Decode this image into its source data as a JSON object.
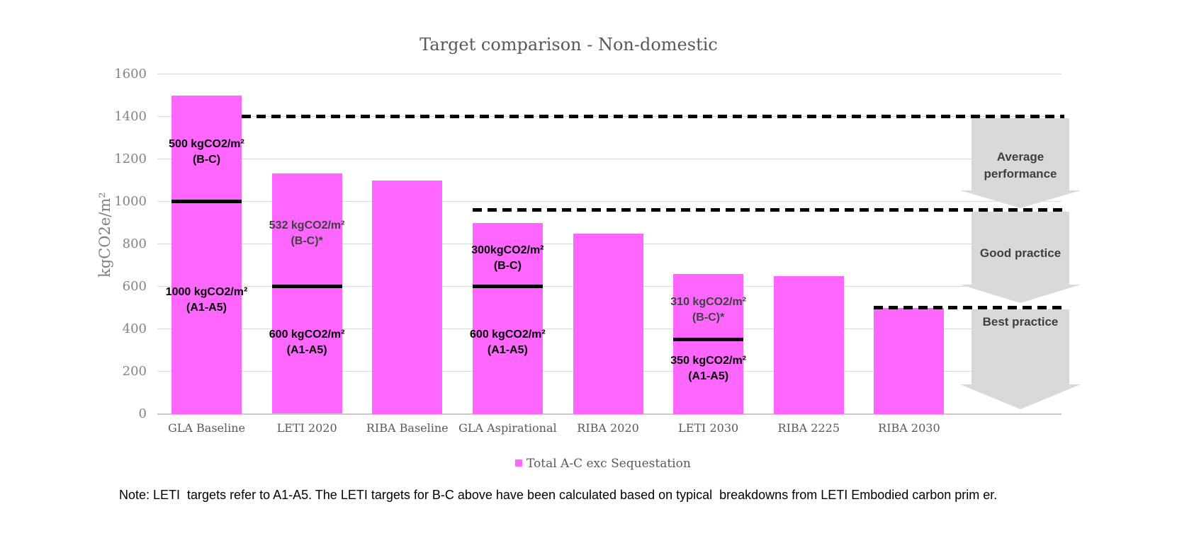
{
  "title": "Target comparison - Non-domestic",
  "y_axis_label": "kgCO2e/m²",
  "legend": {
    "label": "Total A-C exc Sequestation"
  },
  "note": "Note: LETI  targets refer to A1-A5. The LETI targets for B-C above have been calculated based on typical  breakdowns from LETI Embodied carbon prim er.",
  "colors": {
    "bar": "#FF66FF",
    "grid": "#D9D9D9",
    "arrow": "#D9D9D9",
    "marker_line": "#000000",
    "dashed_line": "#000000",
    "starred_label": "#404040",
    "plain_label": "#000000"
  },
  "chart_data": {
    "type": "bar",
    "title": "Target comparison - Non-domestic",
    "xlabel": "",
    "ylabel": "kgCO2e/m²",
    "ylim": [
      0,
      1600
    ],
    "ytick_step": 200,
    "grid": true,
    "legend_position": "bottom",
    "categories": [
      "GLA Baseline",
      "LETI 2020",
      "RIBA Baseline",
      "GLA Aspirational",
      "RIBA 2020",
      "LETI 2030",
      "RIBA 2225",
      "RIBA 2030"
    ],
    "series": [
      {
        "name": "Total A-C exc Sequestation",
        "values": [
          1500,
          1132,
          1100,
          900,
          850,
          660,
          650,
          500
        ]
      }
    ],
    "bar_annotations": [
      {
        "category": "GLA Baseline",
        "divider": 1000,
        "upper_lines": [
          "500 kgCO2/m²",
          "(B-C)"
        ],
        "upper_color": "#000000",
        "lower_lines": [
          "1000 kgCO2/m²",
          "(A1-A5)"
        ],
        "lower_color": "#000000"
      },
      {
        "category": "LETI 2020",
        "divider": 600,
        "upper_lines": [
          "532 kgCO2/m²",
          "(B-C)*"
        ],
        "upper_color": "#404040",
        "lower_lines": [
          "600 kgCO2/m²",
          "(A1-A5)"
        ],
        "lower_color": "#000000"
      },
      {
        "category": "GLA Aspirational",
        "divider": 600,
        "upper_lines": [
          "300kgCO2/m²",
          "(B-C)"
        ],
        "upper_color": "#000000",
        "lower_lines": [
          "600 kgCO2/m²",
          "(A1-A5)"
        ],
        "lower_color": "#000000"
      },
      {
        "category": "LETI 2030",
        "divider": 350,
        "upper_lines": [
          "310 kgCO2/m²",
          "(B-C)*"
        ],
        "upper_color": "#404040",
        "lower_lines": [
          "350 kgCO2/m²",
          "(A1-A5)"
        ],
        "lower_color": "#000000"
      }
    ],
    "threshold_zones": [
      {
        "label": "Average performance",
        "level": 1400,
        "line_start_category": "GLA Baseline",
        "line_start_edge": "right"
      },
      {
        "label": "Good practice",
        "level": 960,
        "line_start_category": "GLA Aspirational",
        "line_start_edge": "left"
      },
      {
        "label": "Best practice",
        "level": 500,
        "line_start_category": "RIBA 2030",
        "line_start_edge": "left"
      }
    ]
  }
}
